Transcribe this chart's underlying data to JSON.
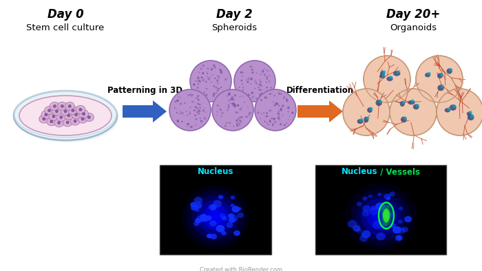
{
  "bg_color": "#ffffff",
  "title_day0": "Day 0",
  "title_day2": "Day 2",
  "title_day20": "Day 20+",
  "subtitle_day0": "Stem cell culture",
  "subtitle_day2": "Spheroids",
  "subtitle_day20": "Organoids",
  "arrow1_label": "Patterning in 3D",
  "arrow2_label": "Differentiation",
  "nucleus_label": "Nucleus",
  "nucleus_color": "#00e8ff",
  "vessels_color": "#00e050",
  "arrow1_color": "#3060c0",
  "arrow2_color": "#e06820",
  "spheroid_fill": "#b890cc",
  "spheroid_edge": "#9068b0",
  "spheroid_dot": "#7048a0",
  "organoid_fill": "#f0c8b0",
  "organoid_edge": "#c89878",
  "organoid_vessel": "#c04020",
  "organoid_nuc_fill": "#404878",
  "organoid_nuc_eye": "#00aacc",
  "petri_outer_fill": "#e8f0f8",
  "petri_outer_edge": "#a8c0d0",
  "petri_inner_fill": "#f4d8e8",
  "petri_inner_edge": "#d0a8bc",
  "cell_fill": "#d8b0d0",
  "cell_edge": "#a878b0",
  "cell_nuc": "#7840a0"
}
